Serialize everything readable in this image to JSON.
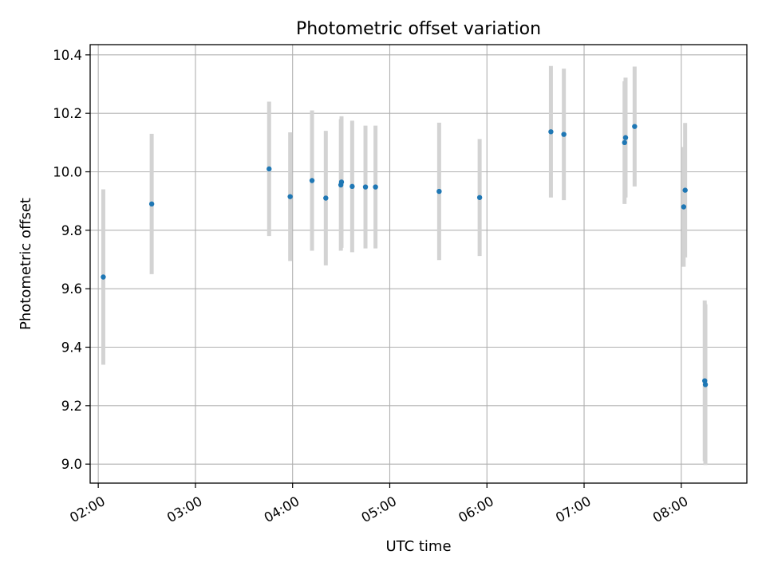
{
  "chart_data": {
    "type": "scatter",
    "title": "Photometric offset variation",
    "xlabel": "UTC time",
    "ylabel": "Photometric offset",
    "x_unit": "minutes since 00:00 UTC",
    "xlim": [
      115.0,
      520.5
    ],
    "ylim": [
      8.935,
      10.435
    ],
    "x_ticks": [
      {
        "value": 120,
        "label": "02:00"
      },
      {
        "value": 180,
        "label": "03:00"
      },
      {
        "value": 240,
        "label": "04:00"
      },
      {
        "value": 300,
        "label": "05:00"
      },
      {
        "value": 360,
        "label": "06:00"
      },
      {
        "value": 420,
        "label": "07:00"
      },
      {
        "value": 480,
        "label": "08:00"
      }
    ],
    "y_ticks": [
      {
        "value": 9.0,
        "label": "9.0"
      },
      {
        "value": 9.2,
        "label": "9.2"
      },
      {
        "value": 9.4,
        "label": "9.4"
      },
      {
        "value": 9.6,
        "label": "9.6"
      },
      {
        "value": 9.8,
        "label": "9.8"
      },
      {
        "value": 10.0,
        "label": "10.0"
      },
      {
        "value": 10.2,
        "label": "10.2"
      },
      {
        "value": 10.4,
        "label": "10.4"
      }
    ],
    "grid": true,
    "colors": {
      "point": "#1f77b4",
      "errorbar": "#d3d3d3",
      "grid": "#b0b0b0",
      "axes": "#000000"
    },
    "series": [
      {
        "points": [
          {
            "x": 123.1,
            "y": 9.64,
            "err": 0.3
          },
          {
            "x": 153.0,
            "y": 9.89,
            "err": 0.24
          },
          {
            "x": 225.5,
            "y": 10.01,
            "err": 0.23
          },
          {
            "x": 238.5,
            "y": 9.915,
            "err": 0.22
          },
          {
            "x": 252.0,
            "y": 9.97,
            "err": 0.24
          },
          {
            "x": 260.5,
            "y": 9.91,
            "err": 0.23
          },
          {
            "x": 269.8,
            "y": 9.955,
            "err": 0.225
          },
          {
            "x": 270.2,
            "y": 9.965,
            "err": 0.225
          },
          {
            "x": 276.8,
            "y": 9.95,
            "err": 0.225
          },
          {
            "x": 285.0,
            "y": 9.948,
            "err": 0.21
          },
          {
            "x": 291.2,
            "y": 9.948,
            "err": 0.21
          },
          {
            "x": 330.5,
            "y": 9.933,
            "err": 0.235
          },
          {
            "x": 355.5,
            "y": 9.912,
            "err": 0.2
          },
          {
            "x": 399.5,
            "y": 10.137,
            "err": 0.225
          },
          {
            "x": 407.5,
            "y": 10.128,
            "err": 0.225
          },
          {
            "x": 445.0,
            "y": 10.1,
            "err": 0.21
          },
          {
            "x": 445.6,
            "y": 10.117,
            "err": 0.205
          },
          {
            "x": 451.2,
            "y": 10.155,
            "err": 0.205
          },
          {
            "x": 481.5,
            "y": 9.88,
            "err": 0.205
          },
          {
            "x": 482.4,
            "y": 9.937,
            "err": 0.23
          },
          {
            "x": 494.5,
            "y": 9.285,
            "err": 0.275
          },
          {
            "x": 494.9,
            "y": 9.272,
            "err": 0.275
          }
        ]
      }
    ]
  }
}
